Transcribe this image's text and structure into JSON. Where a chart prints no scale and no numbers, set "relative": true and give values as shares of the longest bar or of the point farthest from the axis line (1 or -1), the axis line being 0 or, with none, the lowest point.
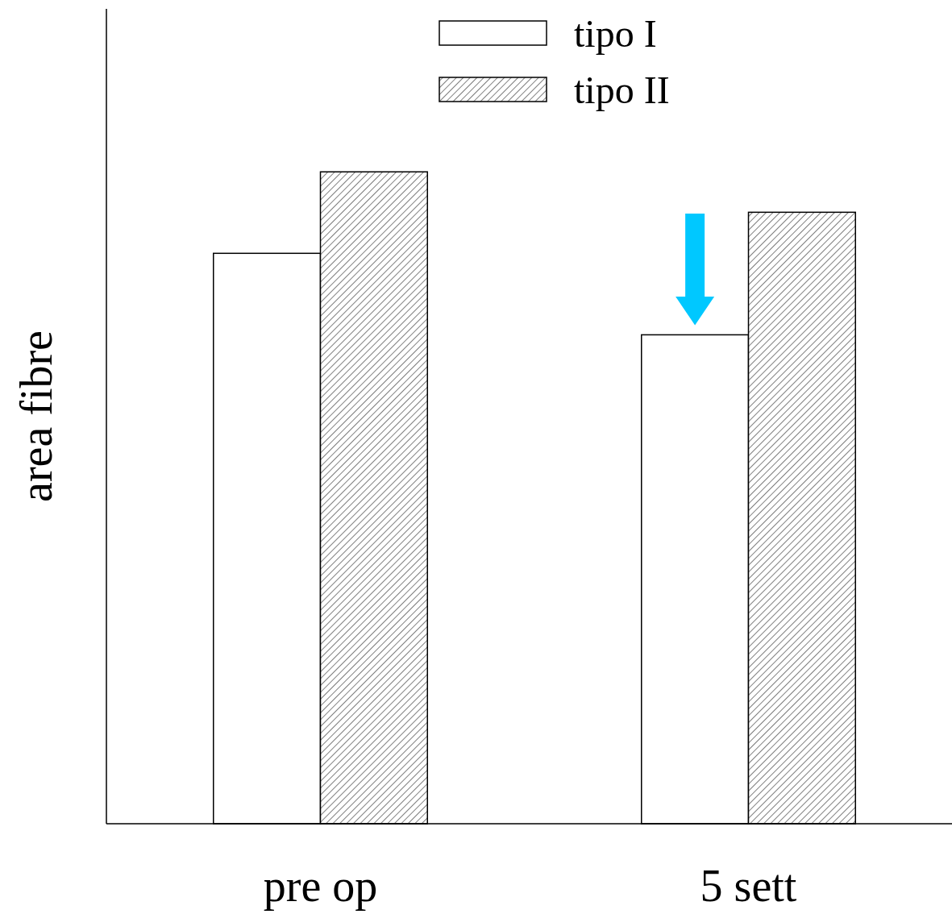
{
  "chart_data": {
    "type": "bar",
    "ylabel": "area fibre",
    "categories": [
      "pre op",
      "5 sett"
    ],
    "relative": true,
    "legend": "top",
    "series": [
      {
        "name": "tipo I",
        "color": "#ffffff",
        "values": [
          0.875,
          0.75
        ]
      },
      {
        "name": "tipo II",
        "color": "#000000",
        "values": [
          1,
          0.938
        ]
      }
    ]
  }
}
